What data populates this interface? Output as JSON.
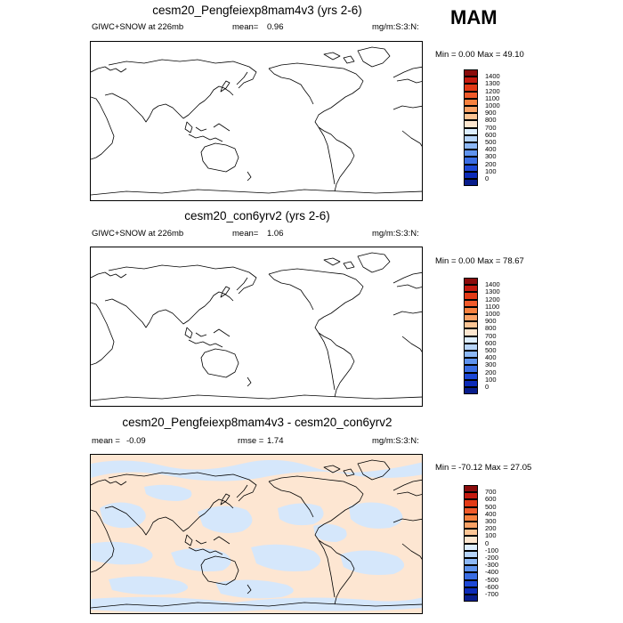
{
  "season": "MAM",
  "panels": [
    {
      "title": "cesm20_Pengfeiexp8mam4v3 (yrs 2-6)",
      "left_label": "GIWC+SNOW at 226mb",
      "stat_label": "mean=",
      "stat_value": "0.96",
      "extra_label": "",
      "extra_value": "",
      "units": "mg/m:S:3:N:",
      "minmax": "Min =  0.00 Max =  49.10",
      "fill": "none",
      "colorbar_labels": [
        "1400",
        "1300",
        "1200",
        "1100",
        "1000",
        "900",
        "800",
        "700",
        "600",
        "500",
        "400",
        "300",
        "200",
        "100",
        "0"
      ]
    },
    {
      "title": "cesm20_con6yrv2 (yrs 2-6)",
      "left_label": "GIWC+SNOW at 226mb",
      "stat_label": "mean=",
      "stat_value": "1.06",
      "extra_label": "",
      "extra_value": "",
      "units": "mg/m:S:3:N:",
      "minmax": "Min =  0.00 Max =  78.67",
      "fill": "none",
      "colorbar_labels": [
        "1400",
        "1300",
        "1200",
        "1100",
        "1000",
        "900",
        "800",
        "700",
        "600",
        "500",
        "400",
        "300",
        "200",
        "100",
        "0"
      ]
    },
    {
      "title": "cesm20_Pengfeiexp8mam4v3 - cesm20_con6yrv2",
      "left_label": "mean =",
      "stat_label": "",
      "stat_value": "-0.09",
      "extra_label": "rmse =",
      "extra_value": "1.74",
      "units": "mg/m:S:3:N:",
      "minmax": "Min = -70.12 Max =  27.05",
      "fill": "diff",
      "colorbar_labels": [
        "700",
        "600",
        "500",
        "400",
        "300",
        "200",
        "100",
        "0",
        "-100",
        "-200",
        "-300",
        "-400",
        "-500",
        "-600",
        "-700"
      ]
    }
  ],
  "colors": {
    "scale": [
      "#8a0b0b",
      "#c41a0f",
      "#e33a16",
      "#f05a2a",
      "#f7813f",
      "#fba266",
      "#fdc595",
      "#fde6cf",
      "#ddeeff",
      "#b7d5fb",
      "#8db8f6",
      "#5f93ee",
      "#3a6de3",
      "#1d48d6",
      "#0c2bb8",
      "#081d8c"
    ],
    "diff_positive": "#fde6d2",
    "diff_negative": "#d5e7fb"
  }
}
